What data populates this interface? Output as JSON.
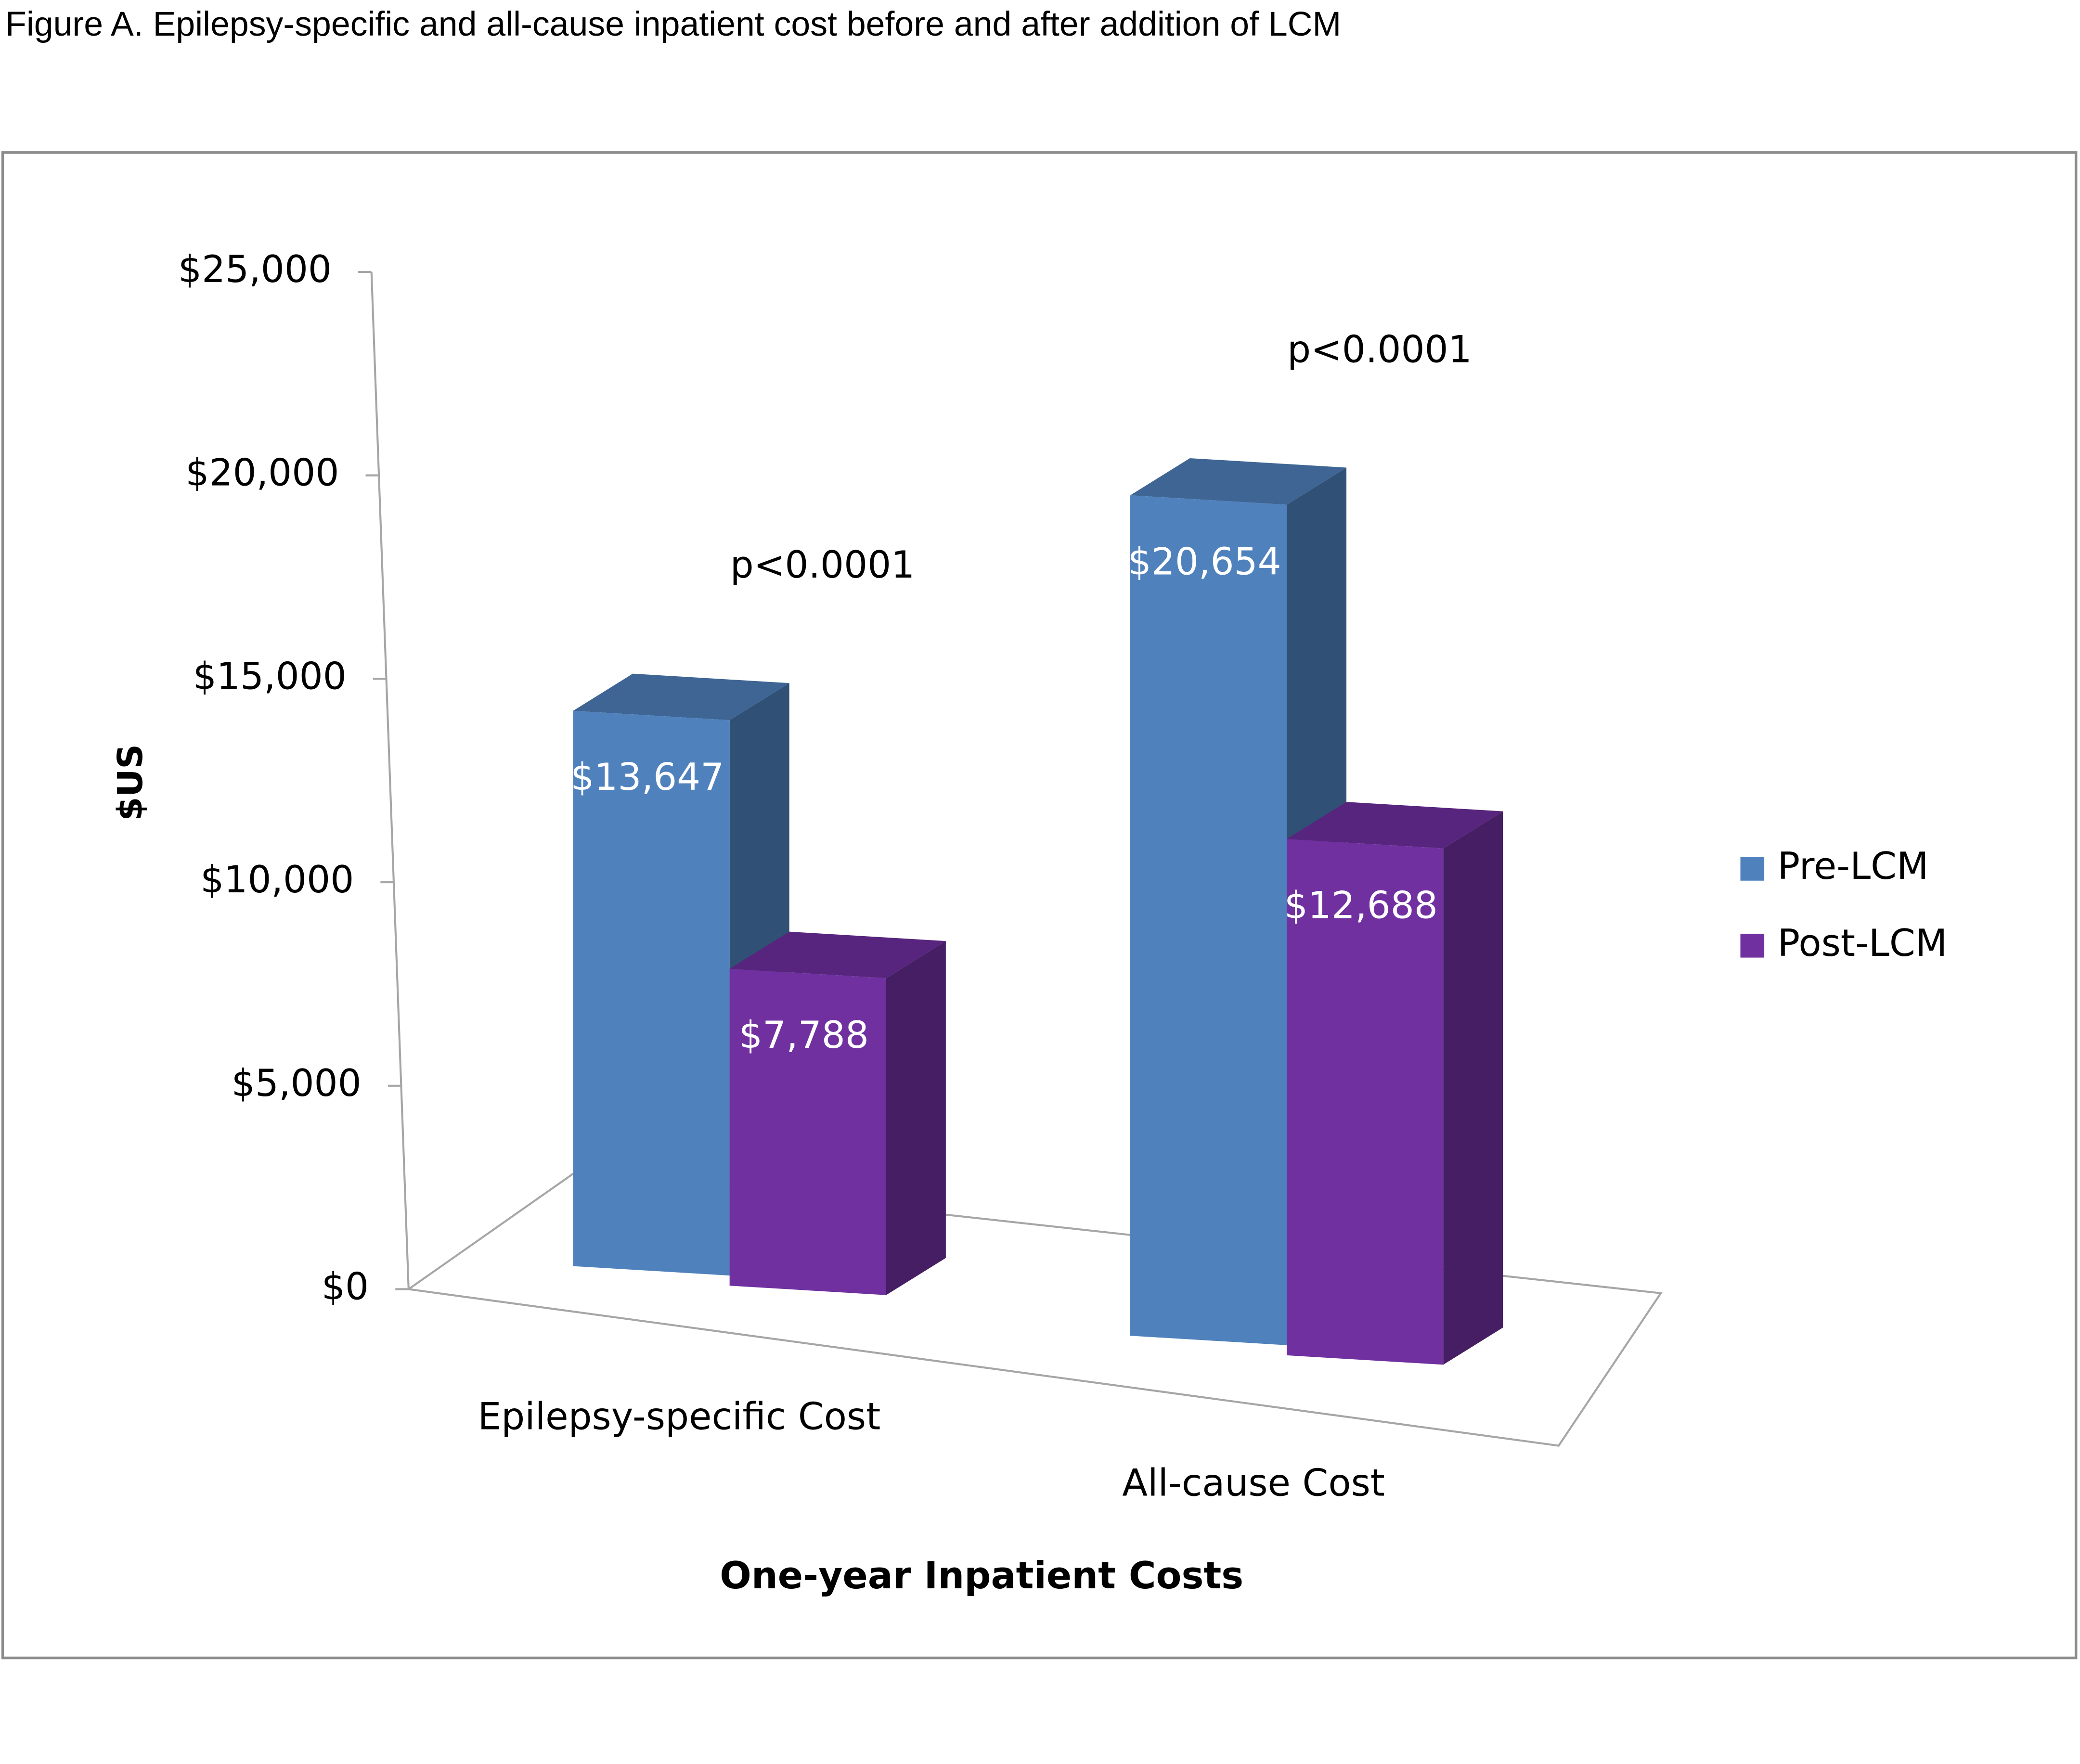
{
  "chart_data": {
    "type": "bar3d",
    "title": "Figure A. Epilepsy-specific and all-cause inpatient cost before and after addition of LCM",
    "x_label": "One-year Inpatient Costs",
    "y_label": "$US",
    "categories": [
      "Epilepsy-specific Cost",
      "All-cause Cost"
    ],
    "series": [
      {
        "name": "Pre-LCM",
        "color": "#4f81bd",
        "values": [
          13647,
          20654
        ],
        "value_labels": [
          "$13,647",
          "$20,654"
        ]
      },
      {
        "name": "Post-LCM",
        "color": "#7030a0",
        "values": [
          7788,
          12688
        ],
        "value_labels": [
          "$7,788",
          "$12,688"
        ]
      }
    ],
    "annotations": [
      "p<0.0001",
      "p<0.0001"
    ],
    "ylim": [
      0,
      25000
    ],
    "yticks": [
      {
        "value": 0,
        "label": "$0"
      },
      {
        "value": 5000,
        "label": "$5,000"
      },
      {
        "value": 10000,
        "label": "$10,000"
      },
      {
        "value": 15000,
        "label": "$15,000"
      },
      {
        "value": 20000,
        "label": "$20,000"
      },
      {
        "value": 25000,
        "label": "$25,000"
      }
    ],
    "legend": "right"
  }
}
